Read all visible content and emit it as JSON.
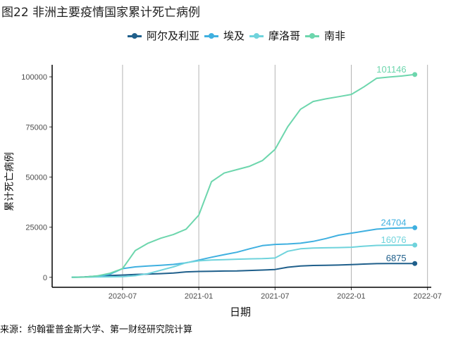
{
  "title": "图22 非洲主要疫情国家累计死亡病例",
  "source": "来源：约翰霍普金斯大学、第一财经研究院计算",
  "chart_data": {
    "type": "line",
    "title": "图22 非洲主要疫情国家累计死亡病例",
    "xlabel": "日期",
    "ylabel": "累计死亡病例",
    "xlim": [
      "2020-01-15",
      "2022-07-10"
    ],
    "ylim": [
      -5000,
      106000
    ],
    "x_ticks": [
      "2020-07",
      "2021-01",
      "2021-07",
      "2022-01",
      "2022-07"
    ],
    "y_ticks": [
      0,
      25000,
      50000,
      75000,
      100000
    ],
    "y_tick_labels": [
      "0",
      "25000",
      "50000",
      "75000",
      "100000"
    ],
    "grid": "vertical major gridlines",
    "legend_position": "top",
    "x": [
      "2020-03",
      "2020-04",
      "2020-05",
      "2020-06",
      "2020-07",
      "2020-08",
      "2020-09",
      "2020-10",
      "2020-11",
      "2020-12",
      "2021-01",
      "2021-02",
      "2021-03",
      "2021-04",
      "2021-05",
      "2021-06",
      "2021-07",
      "2021-08",
      "2021-09",
      "2021-10",
      "2021-11",
      "2021-12",
      "2022-01",
      "2022-02",
      "2022-03",
      "2022-04",
      "2022-05",
      "2022-06"
    ],
    "series": [
      {
        "name": "阿尔及利亚",
        "color": "#1f5f8b",
        "end_label": "6875",
        "values": [
          0,
          200,
          600,
          900,
          1100,
          1400,
          1600,
          1800,
          2100,
          2700,
          2900,
          3000,
          3100,
          3200,
          3400,
          3600,
          3900,
          5000,
          5600,
          5900,
          6000,
          6100,
          6300,
          6600,
          6800,
          6850,
          6870,
          6875
        ]
      },
      {
        "name": "埃及",
        "color": "#3fb0e0",
        "end_label": "24704",
        "values": [
          0,
          100,
          300,
          1500,
          4300,
          5200,
          5600,
          6000,
          6400,
          7200,
          8600,
          10000,
          11300,
          12500,
          14200,
          15800,
          16400,
          16600,
          17000,
          17900,
          19300,
          21000,
          22000,
          23000,
          24000,
          24400,
          24600,
          24704
        ]
      },
      {
        "name": "摩洛哥",
        "color": "#6fd3dc",
        "end_label": "16076",
        "values": [
          0,
          100,
          200,
          250,
          300,
          800,
          1800,
          3500,
          5200,
          7300,
          8200,
          8600,
          8800,
          9000,
          9200,
          9300,
          9600,
          13000,
          14200,
          14600,
          14700,
          14800,
          15000,
          15500,
          15900,
          16000,
          16050,
          16076
        ]
      },
      {
        "name": "南非",
        "color": "#6dd6ad",
        "end_label": "101146",
        "values": [
          0,
          100,
          700,
          2000,
          4300,
          13300,
          17000,
          19500,
          21300,
          24000,
          31000,
          47700,
          52000,
          53700,
          55400,
          58200,
          63800,
          75100,
          83800,
          87700,
          89000,
          90100,
          91200,
          95000,
          99300,
          99900,
          100400,
          101146
        ]
      }
    ]
  }
}
